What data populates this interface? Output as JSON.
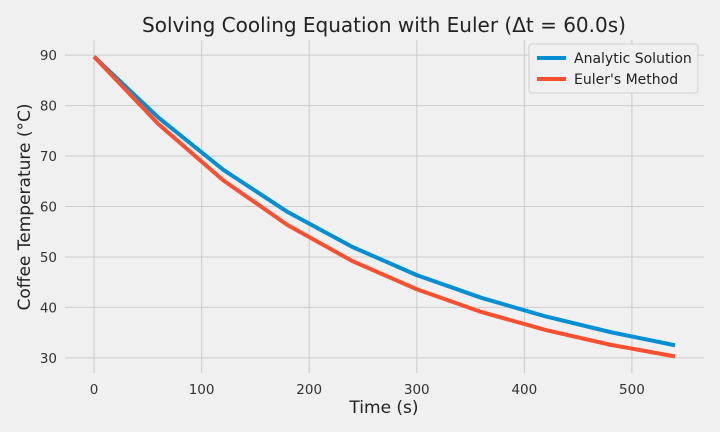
{
  "chart_data": {
    "type": "line",
    "title": "Solving Cooling Equation with Euler (Δt = 60.0s)",
    "xlabel": "Time (s)",
    "ylabel": "Coffee Temperature (°C)",
    "xlim": [
      -27,
      567
    ],
    "ylim": [
      27,
      93
    ],
    "x_ticks": [
      0,
      100,
      200,
      300,
      400,
      500
    ],
    "y_ticks": [
      30,
      40,
      50,
      60,
      70,
      80,
      90
    ],
    "grid": true,
    "legend_position": "top-right",
    "x": [
      0,
      60,
      120,
      180,
      240,
      300,
      360,
      420,
      480,
      540
    ],
    "series": [
      {
        "name": "Analytic Solution",
        "color": "#008fd5",
        "values": [
          89.7,
          77.6,
          67.3,
          58.9,
          52.0,
          46.4,
          41.9,
          38.2,
          35.1,
          32.5
        ]
      },
      {
        "name": "Euler's Method",
        "color": "#fc4f30",
        "values": [
          89.7,
          76.3,
          65.2,
          56.3,
          49.2,
          43.6,
          39.1,
          35.5,
          32.6,
          30.3
        ]
      }
    ]
  }
}
